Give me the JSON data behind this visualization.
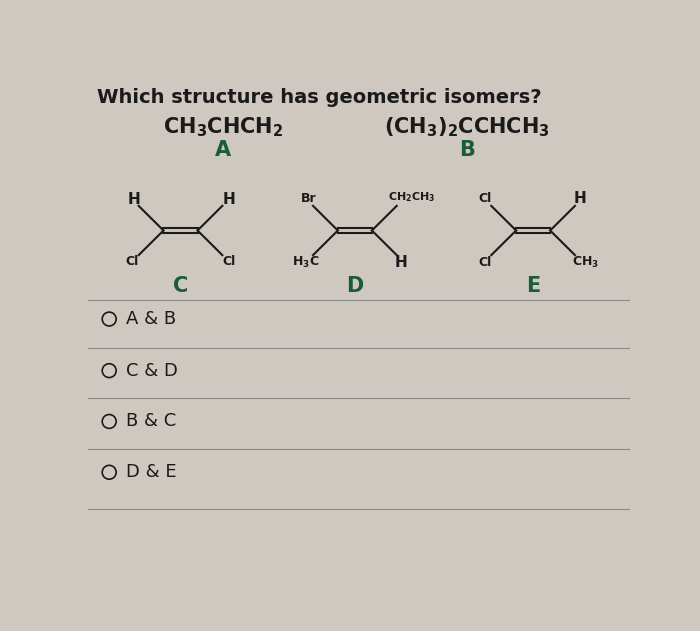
{
  "title": "Which structure has geometric isomers?",
  "bg_color": "#cfc8c0",
  "upper_bg": "#d4cfc8",
  "text_color": "#1a1a1a",
  "label_color": "#1a5c3a",
  "options": [
    "A&B",
    "C&D",
    "B&C",
    "D&E"
  ],
  "title_fontsize": 14,
  "formula_fontsize": 14,
  "label_fontsize": 14,
  "struct_fontsize": 10,
  "option_fontsize": 13
}
